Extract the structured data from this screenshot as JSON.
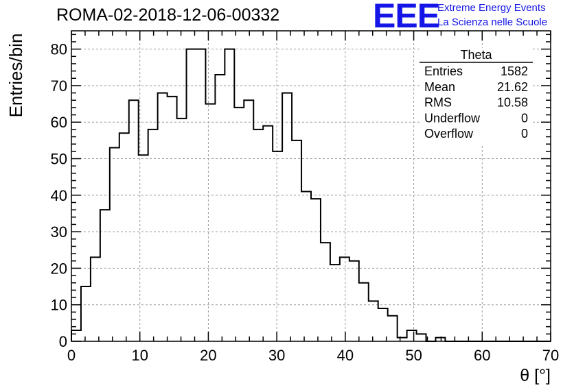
{
  "chart_data": {
    "type": "bar",
    "title": "ROMA-02-2018-12-06-00332",
    "xlabel": "θ [°]",
    "ylabel": "Entries/bin",
    "xlim": [
      0,
      70
    ],
    "ylim": [
      0,
      85
    ],
    "grid": true,
    "bin_width": 1.4,
    "xticks": [
      0,
      10,
      20,
      30,
      40,
      50,
      60,
      70
    ],
    "yticks": [
      0,
      10,
      20,
      30,
      40,
      50,
      60,
      70,
      80
    ],
    "values": [
      3,
      15,
      23,
      36,
      53,
      57,
      66,
      51,
      58,
      68,
      67,
      61,
      80,
      80,
      65,
      73,
      80,
      64,
      66,
      58,
      59,
      52,
      68,
      55,
      41,
      39,
      27,
      21,
      23,
      22,
      16,
      11,
      9,
      7,
      1,
      3,
      2,
      0,
      1,
      0,
      0,
      0,
      0,
      0,
      0,
      0,
      0,
      0,
      0,
      0
    ],
    "stats": {
      "name": "Theta",
      "rows": [
        {
          "label": "Entries",
          "value": "1582"
        },
        {
          "label": "Mean",
          "value": "21.62"
        },
        {
          "label": "RMS",
          "value": "10.58"
        },
        {
          "label": "Underflow",
          "value": "0"
        },
        {
          "label": "Overflow",
          "value": "0"
        }
      ]
    }
  },
  "logo": {
    "mark": "EEE",
    "line1": "Extreme Energy Events",
    "line2": "La Scienza nelle Scuole",
    "color": "#1515e8"
  }
}
